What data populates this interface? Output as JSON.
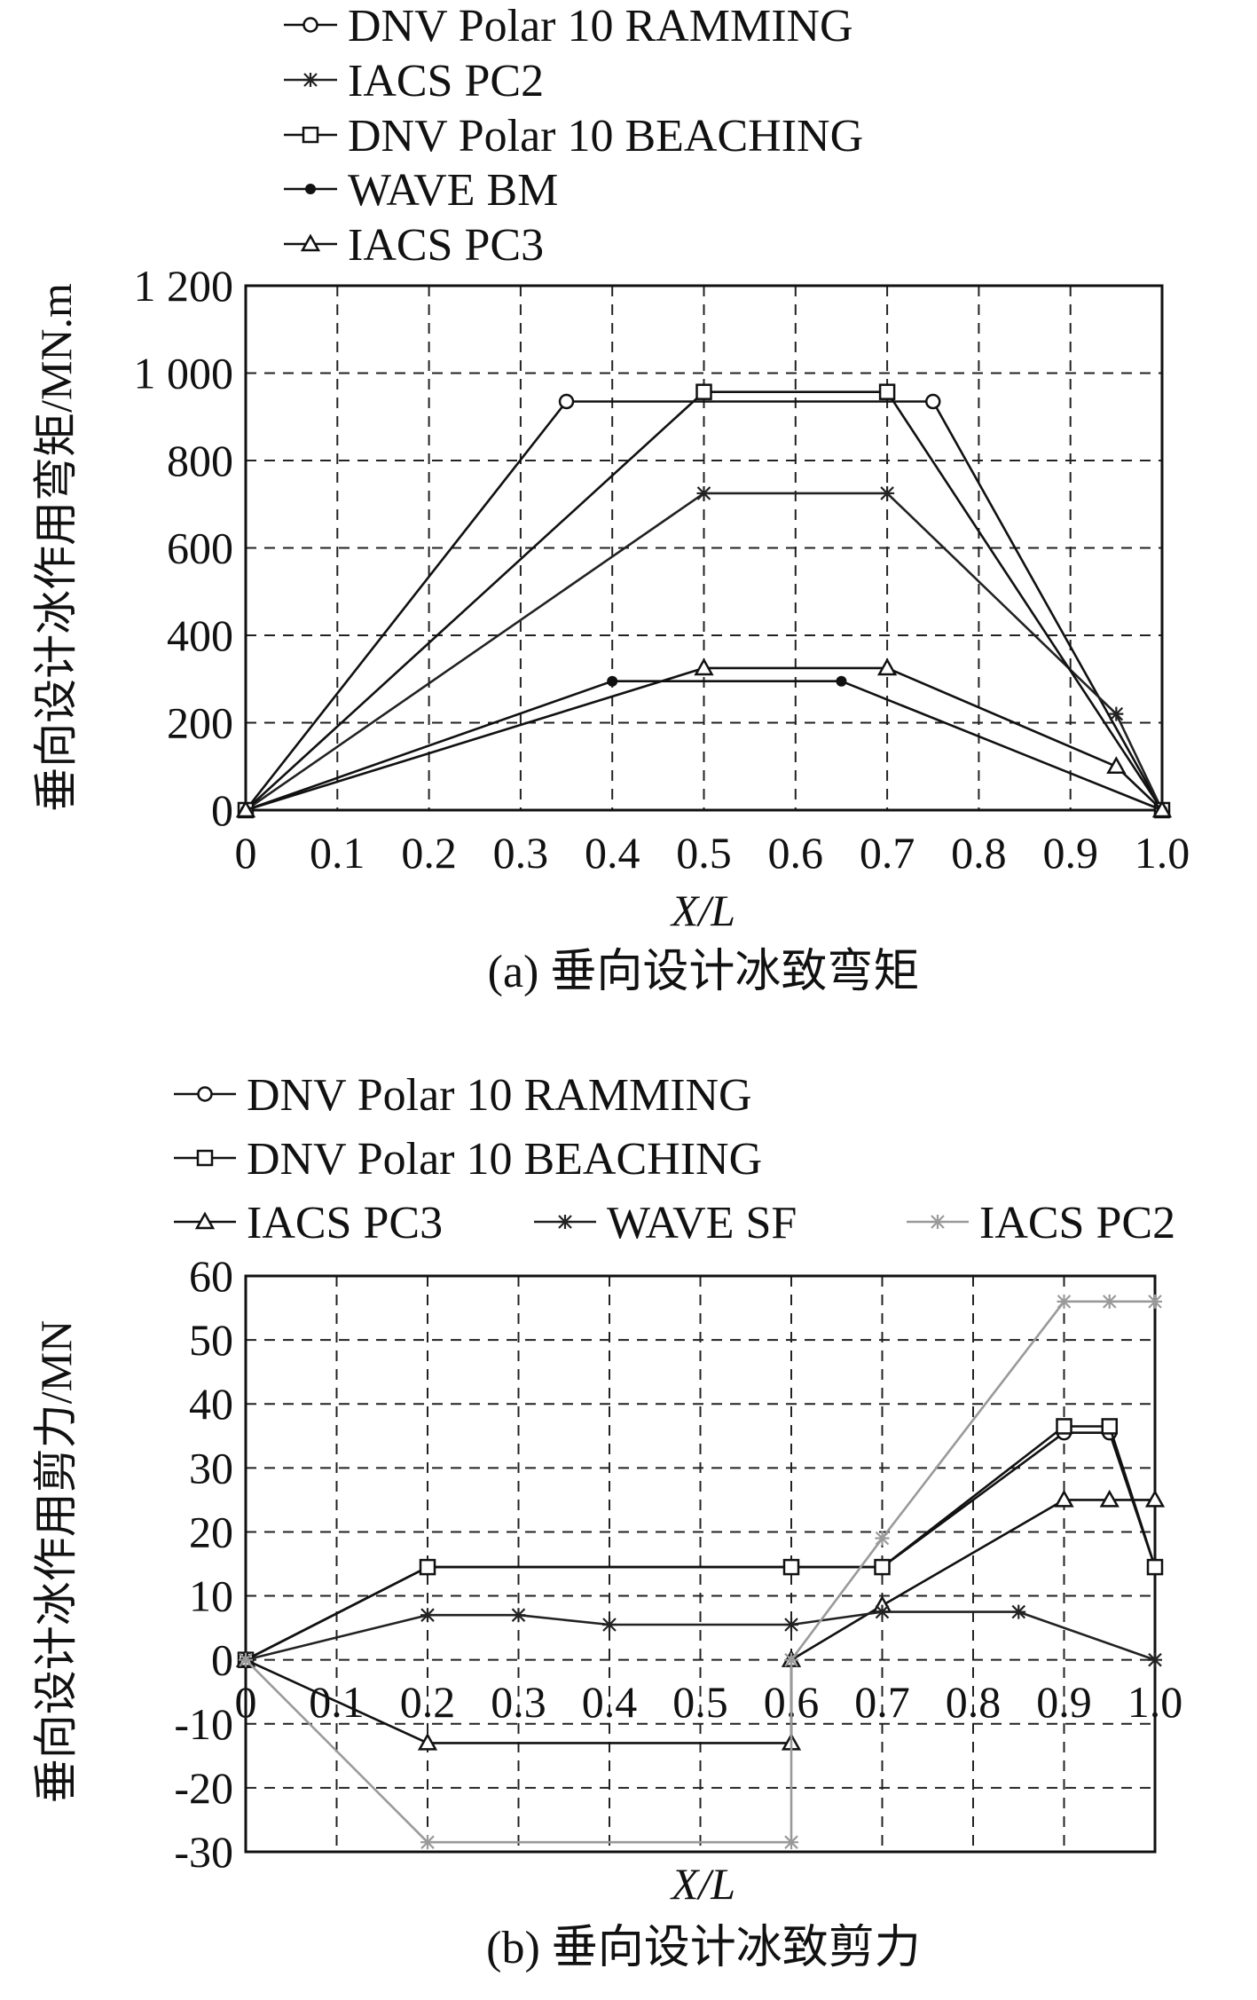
{
  "chart_data": [
    {
      "type": "line",
      "id": "moment",
      "caption": "(a) 垂向设计冰致弯矩",
      "xlabel": "X/L",
      "ylabel": "垂向设计冰作用弯矩/MN.m",
      "xlim": [
        0,
        1
      ],
      "ylim": [
        0,
        1200
      ],
      "grid": true,
      "legend_position": "top-left, above plot",
      "x_ticks": [
        "0",
        "0.1",
        "0.2",
        "0.3",
        "0.4",
        "0.5",
        "0.6",
        "0.7",
        "0.8",
        "0.9",
        "1.0"
      ],
      "y_ticks": [
        {
          "value": 0,
          "label": "0"
        },
        {
          "value": 200,
          "label": "200"
        },
        {
          "value": 400,
          "label": "400"
        },
        {
          "value": 600,
          "label": "600"
        },
        {
          "value": 800,
          "label": "800"
        },
        {
          "value": 1000,
          "label": "1 000"
        },
        {
          "value": 1200,
          "label": "1 200"
        }
      ],
      "series": [
        {
          "name": "DNV Polar 10 RAMMING",
          "marker": "circle",
          "color": "#111111",
          "points": [
            [
              0,
              0
            ],
            [
              0.35,
              935
            ],
            [
              0.75,
              935
            ],
            [
              1.0,
              0
            ]
          ]
        },
        {
          "name": "IACS PC2",
          "marker": "star",
          "color": "#222222",
          "points": [
            [
              0,
              0
            ],
            [
              0.5,
              725
            ],
            [
              0.7,
              725
            ],
            [
              0.95,
              220
            ],
            [
              1.0,
              0
            ]
          ]
        },
        {
          "name": "DNV Polar 10 BEACHING",
          "marker": "square",
          "color": "#111111",
          "points": [
            [
              0,
              0
            ],
            [
              0.5,
              957
            ],
            [
              0.7,
              957
            ],
            [
              1.0,
              0
            ]
          ]
        },
        {
          "name": "WAVE BM",
          "marker": "dot",
          "color": "#111111",
          "points": [
            [
              0,
              0
            ],
            [
              0.4,
              295
            ],
            [
              0.65,
              295
            ],
            [
              1.0,
              0
            ]
          ]
        },
        {
          "name": "IACS PC3",
          "marker": "triangle",
          "color": "#111111",
          "points": [
            [
              0,
              0
            ],
            [
              0.5,
              325
            ],
            [
              0.7,
              325
            ],
            [
              0.95,
              100
            ],
            [
              1.0,
              0
            ]
          ]
        }
      ]
    },
    {
      "type": "line",
      "id": "shear",
      "caption": "(b) 垂向设计冰致剪力",
      "xlabel": "X/L",
      "ylabel": "垂向设计冰作用剪力/MN",
      "xlim": [
        0,
        1
      ],
      "ylim": [
        -30,
        60
      ],
      "grid": true,
      "legend_position": "top-left, above plot",
      "x_ticks": [
        "0",
        "0.1",
        "0.2",
        "0.3",
        "0.4",
        "0.5",
        "0.6",
        "0.7",
        "0.8",
        "0.9",
        "1.0"
      ],
      "y_ticks": [
        {
          "value": -30,
          "label": "-30"
        },
        {
          "value": -20,
          "label": "-20"
        },
        {
          "value": -10,
          "label": "-10"
        },
        {
          "value": 0,
          "label": "0"
        },
        {
          "value": 10,
          "label": "10"
        },
        {
          "value": 20,
          "label": "20"
        },
        {
          "value": 30,
          "label": "30"
        },
        {
          "value": 40,
          "label": "40"
        },
        {
          "value": 50,
          "label": "50"
        },
        {
          "value": 60,
          "label": "60"
        }
      ],
      "series": [
        {
          "name": "DNV Polar 10 RAMMING",
          "marker": "circle",
          "color": "#111111",
          "points": [
            [
              0,
              0
            ],
            [
              0.2,
              14.5
            ],
            [
              0.6,
              14.5
            ],
            [
              0.7,
              14.5
            ],
            [
              0.9,
              35.5
            ],
            [
              0.95,
              35.5
            ],
            [
              1.0,
              14.5
            ]
          ]
        },
        {
          "name": "DNV Polar 10 BEACHING",
          "marker": "square",
          "color": "#111111",
          "points": [
            [
              0,
              0
            ],
            [
              0.2,
              14.5
            ],
            [
              0.6,
              14.5
            ],
            [
              0.7,
              14.5
            ],
            [
              0.9,
              36.5
            ],
            [
              0.95,
              36.5
            ],
            [
              1.0,
              14.5
            ]
          ]
        },
        {
          "name": "IACS PC3",
          "marker": "triangle",
          "color": "#111111",
          "points": [
            [
              0,
              0
            ],
            [
              0.2,
              -13
            ],
            [
              0.6,
              -13
            ],
            [
              0.6,
              0
            ],
            [
              0.7,
              8.5
            ],
            [
              0.9,
              25
            ],
            [
              0.95,
              25
            ],
            [
              1.0,
              25
            ]
          ]
        },
        {
          "name": "WAVE SF",
          "marker": "star",
          "color": "#222222",
          "points": [
            [
              0,
              0
            ],
            [
              0.2,
              7
            ],
            [
              0.3,
              7
            ],
            [
              0.4,
              5.5
            ],
            [
              0.6,
              5.5
            ],
            [
              0.7,
              7.5
            ],
            [
              0.85,
              7.5
            ],
            [
              1.0,
              0
            ]
          ]
        },
        {
          "name": "IACS PC2",
          "marker": "star",
          "color": "#9a9a9a",
          "points": [
            [
              0,
              0
            ],
            [
              0.2,
              -28.5
            ],
            [
              0.6,
              -28.5
            ],
            [
              0.6,
              0
            ],
            [
              0.7,
              19
            ],
            [
              0.9,
              56
            ],
            [
              0.95,
              56
            ],
            [
              1.0,
              56
            ]
          ]
        }
      ]
    }
  ]
}
